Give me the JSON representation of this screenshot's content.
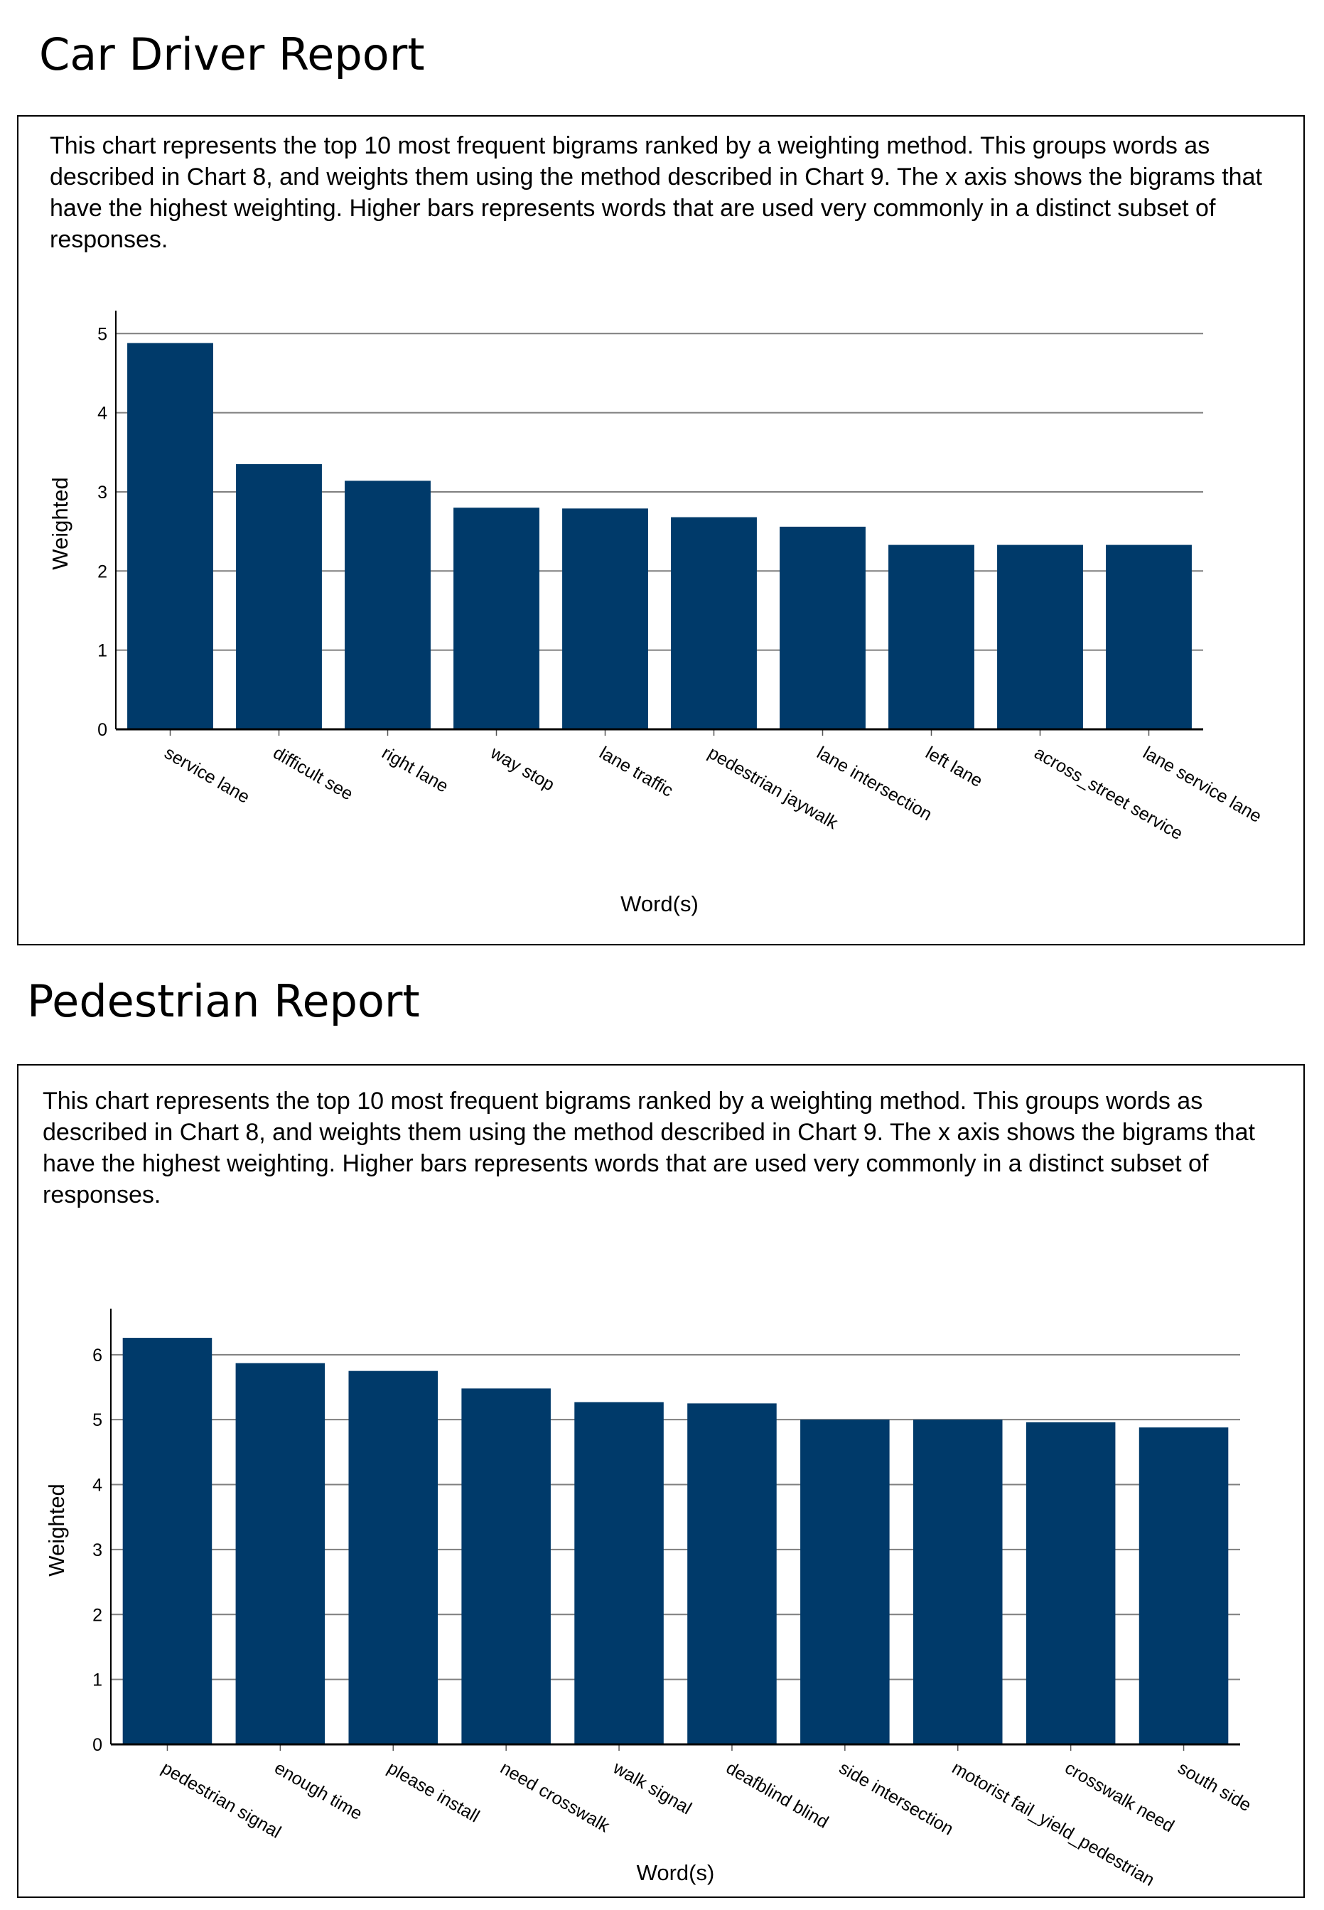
{
  "reports": [
    {
      "title": "Car Driver Report",
      "description": "This chart represents the top 10 most frequent bigrams ranked by a weighting method. This groups words as described in Chart 8, and weights them using the method described in Chart 9. The x axis shows the bigrams that have the highest weighting. Higher bars represents words that are used very commonly in a distinct subset of responses."
    },
    {
      "title": "Pedestrian Report",
      "description": "This chart represents the top 10 most frequent bigrams ranked by a weighting method. This groups words as described in Chart 8, and weights them using the method described in Chart 9. The x axis shows the bigrams that have the highest weighting. Higher bars represents words that are used very commonly in a distinct subset of responses."
    }
  ],
  "colors": {
    "bar": "#003a6a",
    "grid": "#7f7f7f"
  },
  "chart_data": [
    {
      "type": "bar",
      "title": "Car Driver Report",
      "xlabel": "Word(s)",
      "ylabel": "Weighted",
      "categories": [
        "service lane",
        "difficult see",
        "right lane",
        "way stop",
        "lane traffic",
        "pedestrian jaywalk",
        "lane intersection",
        "left lane",
        "across_street service",
        "lane service lane"
      ],
      "values": [
        4.88,
        3.35,
        3.14,
        2.8,
        2.79,
        2.68,
        2.56,
        2.33,
        2.33,
        2.33
      ],
      "yticks": [
        0,
        1,
        2,
        3,
        4,
        5
      ],
      "ylim": [
        0,
        5.2
      ],
      "grid": true
    },
    {
      "type": "bar",
      "title": "Pedestrian Report",
      "xlabel": "Word(s)",
      "ylabel": "Weighted",
      "categories": [
        "pedestrian signal",
        "enough time",
        "please install",
        "need crosswalk",
        "walk signal",
        "deafblind blind",
        "side intersection",
        "motorist fail_yield_pedestrian",
        "crosswalk need",
        "south side"
      ],
      "values": [
        6.26,
        5.87,
        5.75,
        5.48,
        5.27,
        5.25,
        5.0,
        5.0,
        4.96,
        4.88
      ],
      "yticks": [
        0,
        1,
        2,
        3,
        4,
        5,
        6
      ],
      "ylim": [
        0,
        6.6
      ],
      "grid": true
    }
  ]
}
